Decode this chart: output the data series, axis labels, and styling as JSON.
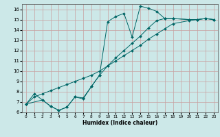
{
  "xlabel": "Humidex (Indice chaleur)",
  "background_color": "#cce8e8",
  "grid_color": "#c8a0a0",
  "line_color": "#006666",
  "xlim": [
    -0.5,
    23.5
  ],
  "ylim": [
    6,
    16.5
  ],
  "yticks": [
    6,
    7,
    8,
    9,
    10,
    11,
    12,
    13,
    14,
    15,
    16
  ],
  "xticks": [
    0,
    1,
    2,
    3,
    4,
    5,
    6,
    7,
    8,
    9,
    10,
    11,
    12,
    13,
    14,
    15,
    16,
    17,
    18,
    19,
    20,
    21,
    22,
    23
  ],
  "series": [
    {
      "x": [
        0,
        1,
        2,
        3,
        4,
        5,
        6,
        7,
        8,
        9,
        10,
        11,
        12,
        13,
        14,
        15,
        16,
        17,
        18,
        20,
        21,
        22,
        23
      ],
      "y": [
        6.8,
        7.8,
        7.2,
        6.6,
        6.2,
        6.5,
        7.5,
        7.4,
        8.5,
        9.6,
        14.8,
        15.3,
        15.6,
        13.3,
        16.3,
        16.1,
        15.8,
        15.1,
        15.1,
        15.0,
        15.0,
        15.1,
        15.0
      ]
    },
    {
      "x": [
        0,
        1,
        2,
        3,
        4,
        5,
        6,
        7,
        8,
        9,
        10,
        11,
        12,
        13,
        14,
        15,
        16,
        17,
        18,
        20,
        21,
        22,
        23
      ],
      "y": [
        6.8,
        7.5,
        7.8,
        8.1,
        8.4,
        8.7,
        9.0,
        9.3,
        9.6,
        10.0,
        10.5,
        11.0,
        11.5,
        12.0,
        12.5,
        13.1,
        13.6,
        14.1,
        14.6,
        14.9,
        15.0,
        15.1,
        15.0
      ]
    },
    {
      "x": [
        0,
        2,
        3,
        4,
        5,
        6,
        7,
        8,
        9,
        10,
        11,
        12,
        13,
        14,
        15,
        16,
        17,
        18,
        20,
        21,
        22,
        23
      ],
      "y": [
        6.8,
        7.2,
        6.6,
        6.2,
        6.5,
        7.5,
        7.3,
        8.5,
        9.6,
        10.5,
        11.3,
        12.0,
        12.7,
        13.4,
        14.2,
        14.9,
        15.1,
        15.1,
        15.0,
        15.0,
        15.1,
        15.0
      ]
    }
  ]
}
